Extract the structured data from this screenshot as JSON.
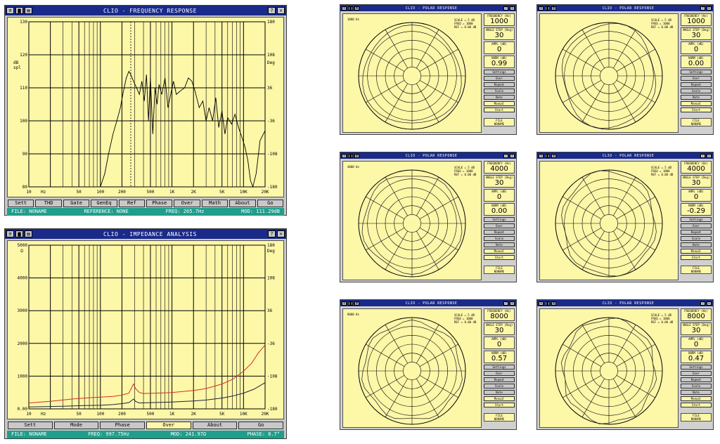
{
  "freq_window": {
    "title": "CLIO - FREQUENCY RESPONSE",
    "left_ticks": [
      "130",
      "120",
      "110",
      "100",
      "90",
      "80"
    ],
    "left_unit_top": "dB",
    "left_unit_bottom": "spl",
    "right_ticks": [
      "180",
      "108",
      "36",
      "-36",
      "-108",
      "-180"
    ],
    "right_unit": "Deg",
    "x_ticks": [
      "10",
      "Hz",
      "50",
      "100",
      "200",
      "500",
      "1K",
      "2K",
      "5K",
      "10K",
      "20K"
    ],
    "buttons": [
      "Sett",
      "THD",
      "Gate",
      "GenEq",
      "Ref",
      "Phase",
      "Over",
      "Math",
      "About",
      "Go"
    ],
    "status": {
      "file": "FILE: NONAME",
      "reference": "REFERENCE: NONE",
      "freq": "FREQ: 265.7Hz",
      "mod": "MOD: 111.29dB"
    }
  },
  "imp_window": {
    "title": "CLIO - IMPEDANCE ANALYSIS",
    "left_ticks": [
      "5000",
      "4000",
      "3000",
      "2000",
      "1000",
      "0.00"
    ],
    "left_unit": "Ω",
    "right_ticks": [
      "180",
      "108",
      "36",
      "-36",
      "-108",
      "-180"
    ],
    "right_unit": "Deg",
    "x_ticks": [
      "10",
      "Hz",
      "50",
      "100",
      "200",
      "500",
      "1K",
      "2K",
      "5K",
      "10K",
      "20K"
    ],
    "buttons": [
      "Sett",
      "Mode",
      "Phase",
      "Over",
      "About",
      "Go"
    ],
    "status": {
      "file": "FILE: NONAME",
      "freq": "FREQ: 997.75Hz",
      "mod": "MOD: 241.97Ω",
      "phase": "PHASE: 8.7°"
    }
  },
  "polar_windows": [
    {
      "title": "CLIO - POLAR RESPONSE",
      "legend": "1000 Hz",
      "freq": "1000",
      "step": "30",
      "ampl": "0",
      "norm": "0.99"
    },
    {
      "title": "CLIO - POLAR RESPONSE",
      "legend": "",
      "freq": "1000",
      "step": "30",
      "ampl": "0",
      "norm": "0.00"
    },
    {
      "title": "CLIO - POLAR RESPONSE",
      "legend": "4000 Hz",
      "freq": "4000",
      "step": "30",
      "ampl": "0",
      "norm": "0.00"
    },
    {
      "title": "CLIO - POLAR RESPONSE",
      "legend": "",
      "freq": "4000",
      "step": "30",
      "ampl": "0",
      "norm": "-0.29"
    },
    {
      "title": "CLIO - POLAR RESPONSE",
      "legend": "8000 Hz",
      "freq": "8000",
      "step": "30",
      "ampl": "0",
      "norm": "0.57"
    },
    {
      "title": "CLIO - POLAR RESPONSE",
      "legend": "",
      "freq": "8000",
      "step": "30",
      "ampl": "0",
      "norm": "0.47"
    }
  ],
  "polar_panel": {
    "box_labels": [
      "FREQUENCY (Hz)",
      "ANGLE STEP (Deg)",
      "AMPL (dB)",
      "NORM (dB)"
    ],
    "buttons": [
      "Settings",
      "Over",
      "Repeat",
      "Scale",
      "Note",
      "Manual",
      "Start"
    ],
    "file_label": "FILE",
    "file_name": "NONAME",
    "info": "SCALE = 5 dB\nFREQ = 1000\nREF = 0.00 dB"
  },
  "colors": {
    "titlebar": "#1a2a8a",
    "plot_bg": "#fdf7a8",
    "status_bar": "#1f9e8c",
    "impedance_curve": "#d03020",
    "phase_curve": "#202040"
  },
  "icons": {
    "window_controls": [
      "menu-icon",
      "save-icon",
      "print-icon"
    ],
    "title_controls": [
      "help-icon",
      "close-icon"
    ]
  }
}
